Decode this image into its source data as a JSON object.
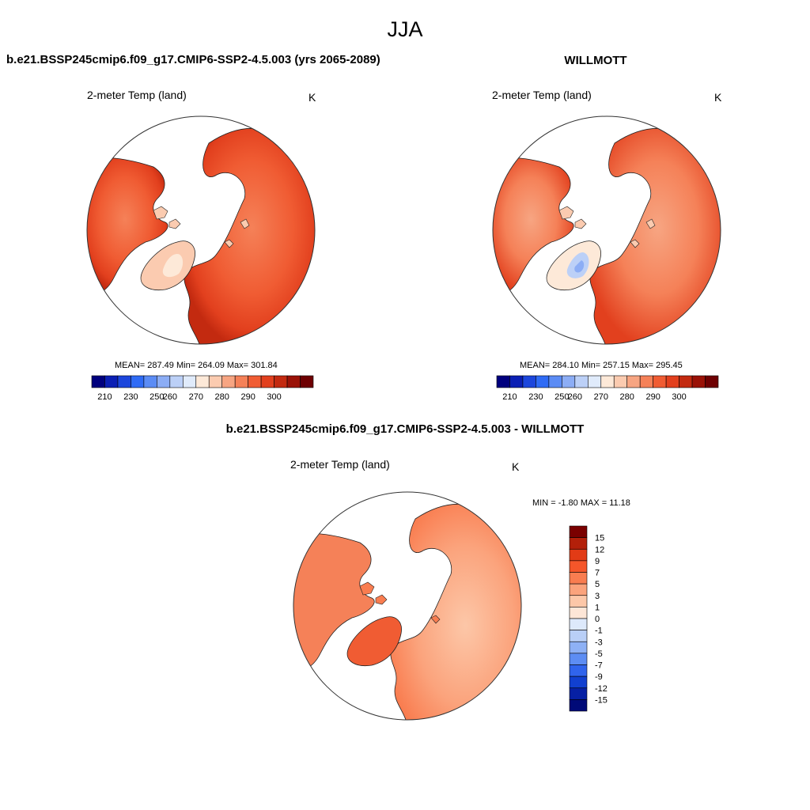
{
  "page_title": "JJA",
  "panels": [
    {
      "title": "b.e21.BSSP245cmip6.f09_g17.CMIP6-SSP2-4.5.003 (yrs 2065-2089)",
      "variable": "2-meter Temp (land)",
      "units": "K",
      "stats": "MEAN= 287.49  Min= 264.09  Max= 301.84"
    },
    {
      "title": "WILLMOTT",
      "variable": "2-meter Temp (land)",
      "units": "K",
      "stats": "MEAN= 284.10  Min= 257.15  Max= 295.45"
    },
    {
      "title": "b.e21.BSSP245cmip6.f09_g17.CMIP6-SSP2-4.5.003 - WILLMOTT",
      "variable": "2-meter Temp (land)",
      "units": "K",
      "stats": "MIN =  -1.80 MAX =  11.18"
    }
  ],
  "abs_colorbar": {
    "labels": [
      "210",
      "230",
      "250",
      "260",
      "270",
      "280",
      "290",
      "300"
    ],
    "colors": [
      "#00007e",
      "#0b1fb4",
      "#1c46dc",
      "#2f6bf5",
      "#5b8cf5",
      "#8cadf5",
      "#bcd0f7",
      "#e0ebfb",
      "#fde9d8",
      "#fbcbb0",
      "#f7a582",
      "#f58158",
      "#f05c33",
      "#e2401e",
      "#c32a10",
      "#9a1207",
      "#6e0002"
    ]
  },
  "diff_colorbar": {
    "labels": [
      "15",
      "12",
      "9",
      "7",
      "5",
      "3",
      "1",
      "0",
      "-1",
      "-3",
      "-5",
      "-7",
      "-9",
      "-12",
      "-15"
    ],
    "colors": [
      "#7a0000",
      "#b3200a",
      "#e23b16",
      "#f5562a",
      "#f97d50",
      "#fba37c",
      "#fcc7a8",
      "#fde6d7",
      "#dde9fb",
      "#b9cff7",
      "#8eb1f5",
      "#5d8df3",
      "#3064ec",
      "#1140d0",
      "#0620a4",
      "#000a78"
    ]
  }
}
